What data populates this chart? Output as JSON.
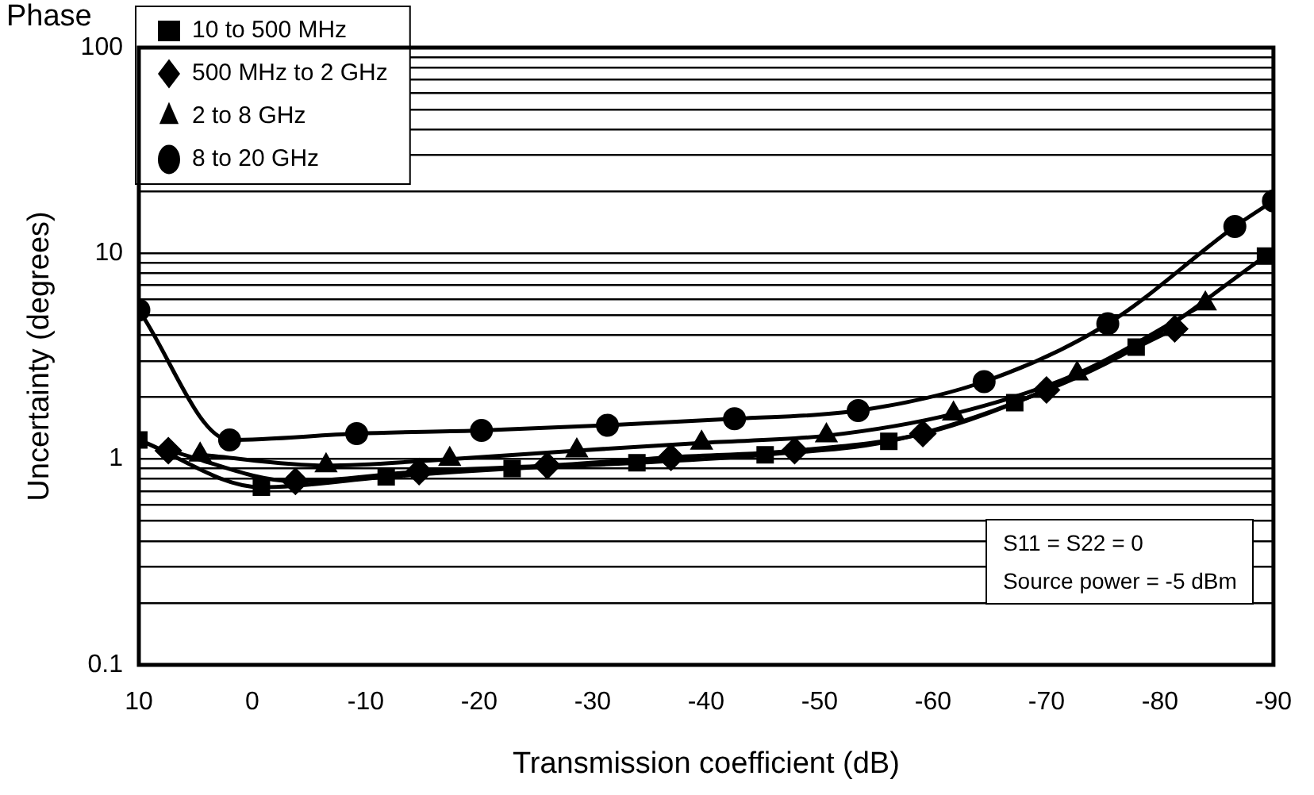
{
  "chart_data": {
    "type": "line",
    "title": "Phase",
    "xlabel": "Transmission coefficient (dB)",
    "ylabel": "Uncertainty (degrees)",
    "annotations": [
      "S11 = S22 = 0",
      "Source power = -5 dBm"
    ],
    "series": [
      {
        "name": "10 to 500 MHz",
        "color": "#000000",
        "marker": "square",
        "x": [
          10,
          -0.8,
          -11.8,
          -22.9,
          -33.9,
          -45.2,
          -56.1,
          -67.2,
          -77.9,
          -89.3
        ],
        "values": [
          1.24,
          0.73,
          0.82,
          0.9,
          0.96,
          1.05,
          1.22,
          1.88,
          3.5,
          9.7
        ]
      },
      {
        "name": "500 MHz to 2 GHz",
        "color": "#000000",
        "marker": "diamond",
        "x": [
          7.4,
          -3.8,
          -14.7,
          -26,
          -36.9,
          -47.8,
          -59.1,
          -70,
          -81.3
        ],
        "values": [
          1.1,
          0.78,
          0.87,
          0.93,
          1.02,
          1.1,
          1.33,
          2.17,
          4.3
        ]
      },
      {
        "name": "2 to 8 GHz",
        "color": "#000000",
        "marker": "triangle",
        "x": [
          4.6,
          -6.5,
          -17.4,
          -28.6,
          -39.6,
          -50.6,
          -61.8,
          -72.7,
          -84
        ],
        "values": [
          1.05,
          0.93,
          1.0,
          1.1,
          1.2,
          1.3,
          1.66,
          2.6,
          5.7
        ]
      },
      {
        "name": "8 to 20 GHz",
        "color": "#000000",
        "marker": "circle",
        "x": [
          10,
          2,
          -9.2,
          -20.2,
          -31.3,
          -42.5,
          -53.4,
          -64.5,
          -75.4,
          -86.6,
          -90
        ],
        "values": [
          5.3,
          1.24,
          1.33,
          1.38,
          1.46,
          1.57,
          1.72,
          2.38,
          4.55,
          13.5,
          18
        ]
      }
    ],
    "xlim": [
      10,
      -90
    ],
    "xticks": [
      10,
      0,
      -10,
      -20,
      -30,
      -40,
      -50,
      -60,
      -70,
      -80,
      -90
    ],
    "ylim": [
      0.1,
      100
    ],
    "yticks": [
      0.1,
      {
        "value": 0.2,
        "label": null
      },
      {
        "value": 0.3,
        "label": null
      },
      {
        "value": 0.4,
        "label": null
      },
      {
        "value": 0.5,
        "label": null
      },
      {
        "value": 0.6,
        "label": null
      },
      {
        "value": 0.7,
        "label": null
      },
      {
        "value": 0.8,
        "label": null
      },
      {
        "value": 0.9,
        "label": null
      },
      1,
      {
        "value": 2,
        "label": null
      },
      {
        "value": 3,
        "label": null
      },
      {
        "value": 4,
        "label": null
      },
      {
        "value": 5,
        "label": null
      },
      {
        "value": 6,
        "label": null
      },
      {
        "value": 7,
        "label": null
      },
      {
        "value": 8,
        "label": null
      },
      {
        "value": 9,
        "label": null
      },
      10,
      {
        "value": 20,
        "label": null
      },
      {
        "value": 30,
        "label": null
      },
      {
        "value": 40,
        "label": null
      },
      {
        "value": 50,
        "label": null
      },
      {
        "value": 60,
        "label": null
      },
      {
        "value": 70,
        "label": null
      },
      {
        "value": 80,
        "label": null
      },
      {
        "value": 90,
        "label": null
      },
      100
    ],
    "log": "y",
    "grid": "y",
    "legend": "top left",
    "line_style": "solid"
  }
}
